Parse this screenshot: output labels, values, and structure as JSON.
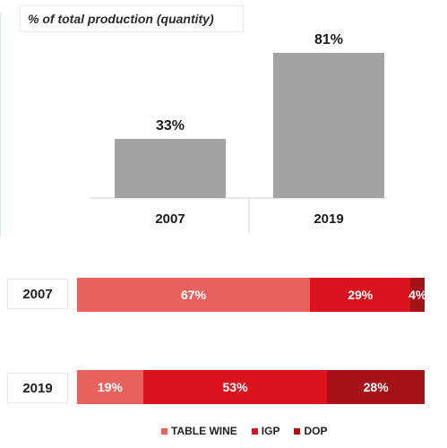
{
  "chart_data": [
    {
      "type": "bar",
      "title": "% of total production (quantity)",
      "categories": [
        "2007",
        "2019"
      ],
      "values": [
        33,
        81
      ],
      "value_labels": [
        "33%",
        "81%"
      ],
      "ylim": [
        0,
        100
      ],
      "color": "#a3a3a3",
      "grid": false
    },
    {
      "type": "bar",
      "orientation": "horizontal-stacked",
      "categories": [
        "2007",
        "2019"
      ],
      "series": [
        {
          "name": "TABLE WINE",
          "color": "#e8625d",
          "values": [
            67,
            19
          ],
          "labels": [
            "67%",
            "19%"
          ]
        },
        {
          "name": "IGP",
          "color": "#d9121d",
          "values": [
            29,
            53
          ],
          "labels": [
            "29%",
            "53%"
          ]
        },
        {
          "name": "DOP",
          "color": "#a51319",
          "values": [
            4,
            28
          ],
          "labels": [
            "4%",
            "28%"
          ]
        }
      ],
      "legend": "bottom"
    }
  ]
}
